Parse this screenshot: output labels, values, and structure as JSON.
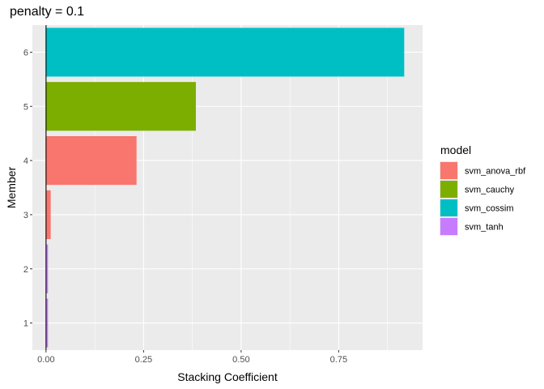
{
  "chart_data": {
    "type": "bar",
    "orientation": "horizontal",
    "title": "penalty = 0.1",
    "xlabel": "Stacking Coefficient",
    "ylabel": "Member",
    "xlim": [
      -0.035,
      0.965
    ],
    "x_ticks": [
      0,
      0.25,
      0.5,
      0.75
    ],
    "x_tick_labels": [
      "0.00",
      "0.25",
      "0.50",
      "0.75"
    ],
    "categories": [
      "1",
      "2",
      "3",
      "4",
      "5",
      "6"
    ],
    "values": [
      0.005,
      0.005,
      0.012,
      0.232,
      0.384,
      0.918
    ],
    "models": [
      "svm_tanh",
      "svm_tanh",
      "svm_anova_rbf",
      "svm_anova_rbf",
      "svm_cauchy",
      "svm_cossim"
    ],
    "legend": {
      "title": "model",
      "position": "right",
      "entries": [
        {
          "label": "svm_anova_rbf",
          "color": "#F8766D"
        },
        {
          "label": "svm_cauchy",
          "color": "#7CAE00"
        },
        {
          "label": "svm_cossim",
          "color": "#00BFC4"
        },
        {
          "label": "svm_tanh",
          "color": "#C77CFF"
        }
      ]
    },
    "vline_x": 0,
    "grid": true,
    "panel_background": "#EBEBEB"
  }
}
